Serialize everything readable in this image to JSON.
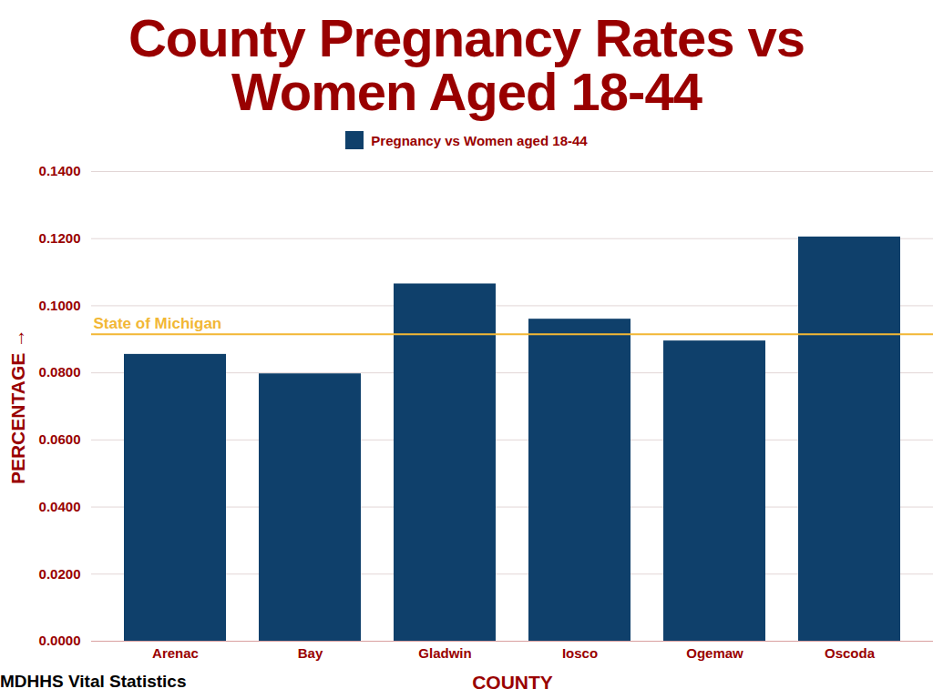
{
  "chart_data": {
    "type": "bar",
    "title": "County Pregnancy Rates vs Women Aged 18-44",
    "categories": [
      "Arenac",
      "Bay",
      "Gladwin",
      "Iosco",
      "Ogemaw",
      "Oscoda"
    ],
    "series": [
      {
        "name": "Pregnancy vs Women aged 18-44",
        "color": "#0f406b",
        "values": [
          0.0855,
          0.0797,
          0.1065,
          0.096,
          0.0895,
          0.1205
        ]
      }
    ],
    "x_label": "COUNTY",
    "y_label": "PERCENTAGE",
    "caption": "MDHHS Vital Statistics",
    "annotations": [
      {
        "text": "State of Michigan",
        "y": 0.0915,
        "color": "#f2b735"
      }
    ],
    "ylim": [
      0,
      0.14
    ],
    "yticks": [
      {
        "value": 0,
        "label": "0.0000"
      },
      {
        "value": 0.02,
        "label": "0.0200"
      },
      {
        "value": 0.04,
        "label": "0.0400"
      },
      {
        "value": 0.06,
        "label": "0.0600"
      },
      {
        "value": 0.08,
        "label": "0.0800"
      },
      {
        "value": 0.1,
        "label": "0.1000"
      },
      {
        "value": 0.12,
        "label": "0.1200"
      },
      {
        "value": 0.14,
        "label": "0.1400"
      }
    ],
    "grid": true,
    "legend": "top"
  }
}
